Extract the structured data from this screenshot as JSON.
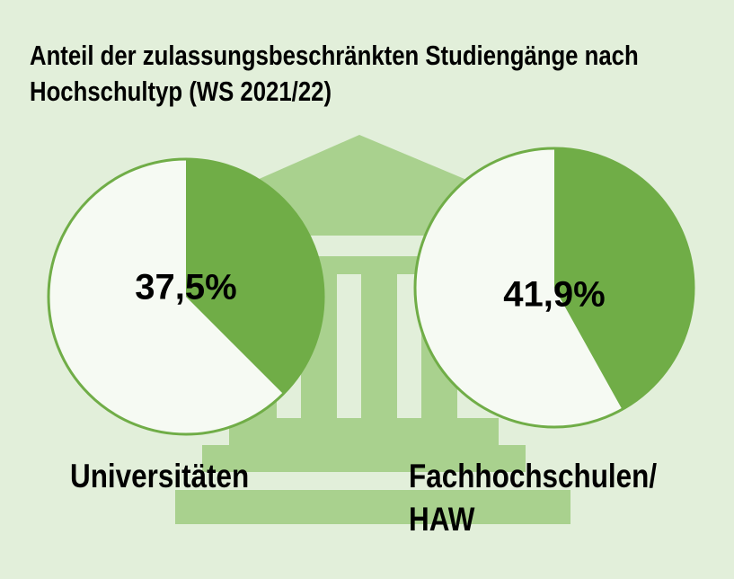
{
  "title": "Anteil der zulassungsbeschränkten Studiengänge nach Hochschultyp (WS 2021/22)",
  "chart_data": [
    {
      "type": "pie",
      "name": "Universitäten",
      "values": [
        37.5
      ],
      "value_labels": [
        "37,5%"
      ],
      "color": "#70ad47"
    },
    {
      "type": "pie",
      "name": "Fachhochschulen/ HAW",
      "values": [
        41.9
      ],
      "value_labels": [
        "41,9%"
      ],
      "color": "#70ad47"
    }
  ]
}
